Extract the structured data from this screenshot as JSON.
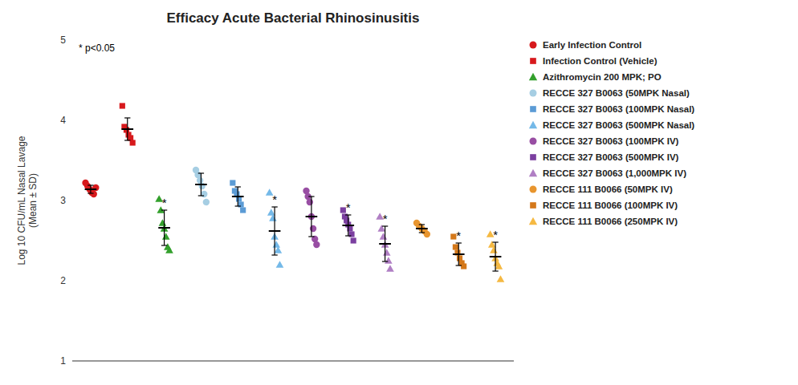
{
  "chart_data": {
    "type": "strip",
    "title": "Efficacy Acute Bacterial Rhinosinusitis",
    "y_label": "Log 10 CFU/mL Nasal Lavage\n(Mean ± SD)",
    "annotation": "* p<0.05",
    "ylim": [
      1,
      5
    ],
    "yticks": [
      1,
      2,
      3,
      4,
      5
    ],
    "tick_labels": "y",
    "legend": "right",
    "series": [
      {
        "name": "Early Infection Control",
        "color": "#d7191c",
        "marker": "circle",
        "values": [
          3.22,
          3.18,
          3.14,
          3.1,
          3.08,
          3.16
        ],
        "mean": 3.14,
        "sd": 0.05
      },
      {
        "name": "Infection Control (Vehicle)",
        "color": "#d7191c",
        "marker": "square",
        "values": [
          4.18,
          3.92,
          3.88,
          3.82,
          3.78,
          3.72
        ],
        "mean": 3.89,
        "sd": 0.14
      },
      {
        "name": "Azithromycin 200 MPK; PO",
        "color": "#33a02c",
        "marker": "triangle",
        "values": [
          3.02,
          2.88,
          2.72,
          2.65,
          2.55,
          2.42,
          2.38
        ],
        "mean": 2.66,
        "sd": 0.22,
        "significance": "*"
      },
      {
        "name": "RECCE 327 B0063 (50MPK Nasal)",
        "color": "#a6cee3",
        "marker": "circle",
        "values": [
          3.38,
          3.32,
          3.25,
          3.18,
          3.08,
          2.98
        ],
        "mean": 3.2,
        "sd": 0.14
      },
      {
        "name": "RECCE 327 B0063 (100MPK Nasal)",
        "color": "#5b9bd5",
        "marker": "square",
        "values": [
          3.22,
          3.12,
          3.08,
          3.02,
          2.95,
          2.88
        ],
        "mean": 3.05,
        "sd": 0.12
      },
      {
        "name": "RECCE 327 B0063 (500MPK Nasal)",
        "color": "#74b9e8",
        "marker": "triangle",
        "values": [
          3.1,
          2.85,
          2.78,
          2.55,
          2.45,
          2.38,
          2.2
        ],
        "mean": 2.62,
        "sd": 0.3,
        "significance": "*"
      },
      {
        "name": "RECCE 327 B0063 (100MPK IV)",
        "color": "#984ea3",
        "marker": "circle",
        "values": [
          3.12,
          3.05,
          2.98,
          2.8,
          2.65,
          2.52,
          2.45
        ],
        "mean": 2.8,
        "sd": 0.25
      },
      {
        "name": "RECCE 327 B0063 (500MPK IV)",
        "color": "#7b3fa0",
        "marker": "square",
        "values": [
          2.88,
          2.8,
          2.75,
          2.7,
          2.65,
          2.58,
          2.5
        ],
        "mean": 2.69,
        "sd": 0.13,
        "significance": "*"
      },
      {
        "name": "RECCE 327 B0063 (1,000MPK IV)",
        "color": "#b07fc4",
        "marker": "triangle",
        "values": [
          2.8,
          2.65,
          2.55,
          2.45,
          2.35,
          2.25,
          2.15
        ],
        "mean": 2.46,
        "sd": 0.22,
        "significance": "*"
      },
      {
        "name": "RECCE 111 B0066 (50MPK IV)",
        "color": "#e8952e",
        "marker": "circle",
        "values": [
          2.72,
          2.68,
          2.65,
          2.62,
          2.58
        ],
        "mean": 2.65,
        "sd": 0.05
      },
      {
        "name": "RECCE 111 B0066 (100MPK IV)",
        "color": "#d4781a",
        "marker": "square",
        "values": [
          2.55,
          2.42,
          2.35,
          2.28,
          2.22,
          2.18
        ],
        "mean": 2.33,
        "sd": 0.14,
        "significance": "*"
      },
      {
        "name": "RECCE 111 B0066 (250MPK IV)",
        "color": "#f5b942",
        "marker": "triangle",
        "values": [
          2.58,
          2.45,
          2.38,
          2.28,
          2.22,
          2.18,
          2.02
        ],
        "mean": 2.3,
        "sd": 0.18,
        "significance": "*"
      }
    ]
  }
}
